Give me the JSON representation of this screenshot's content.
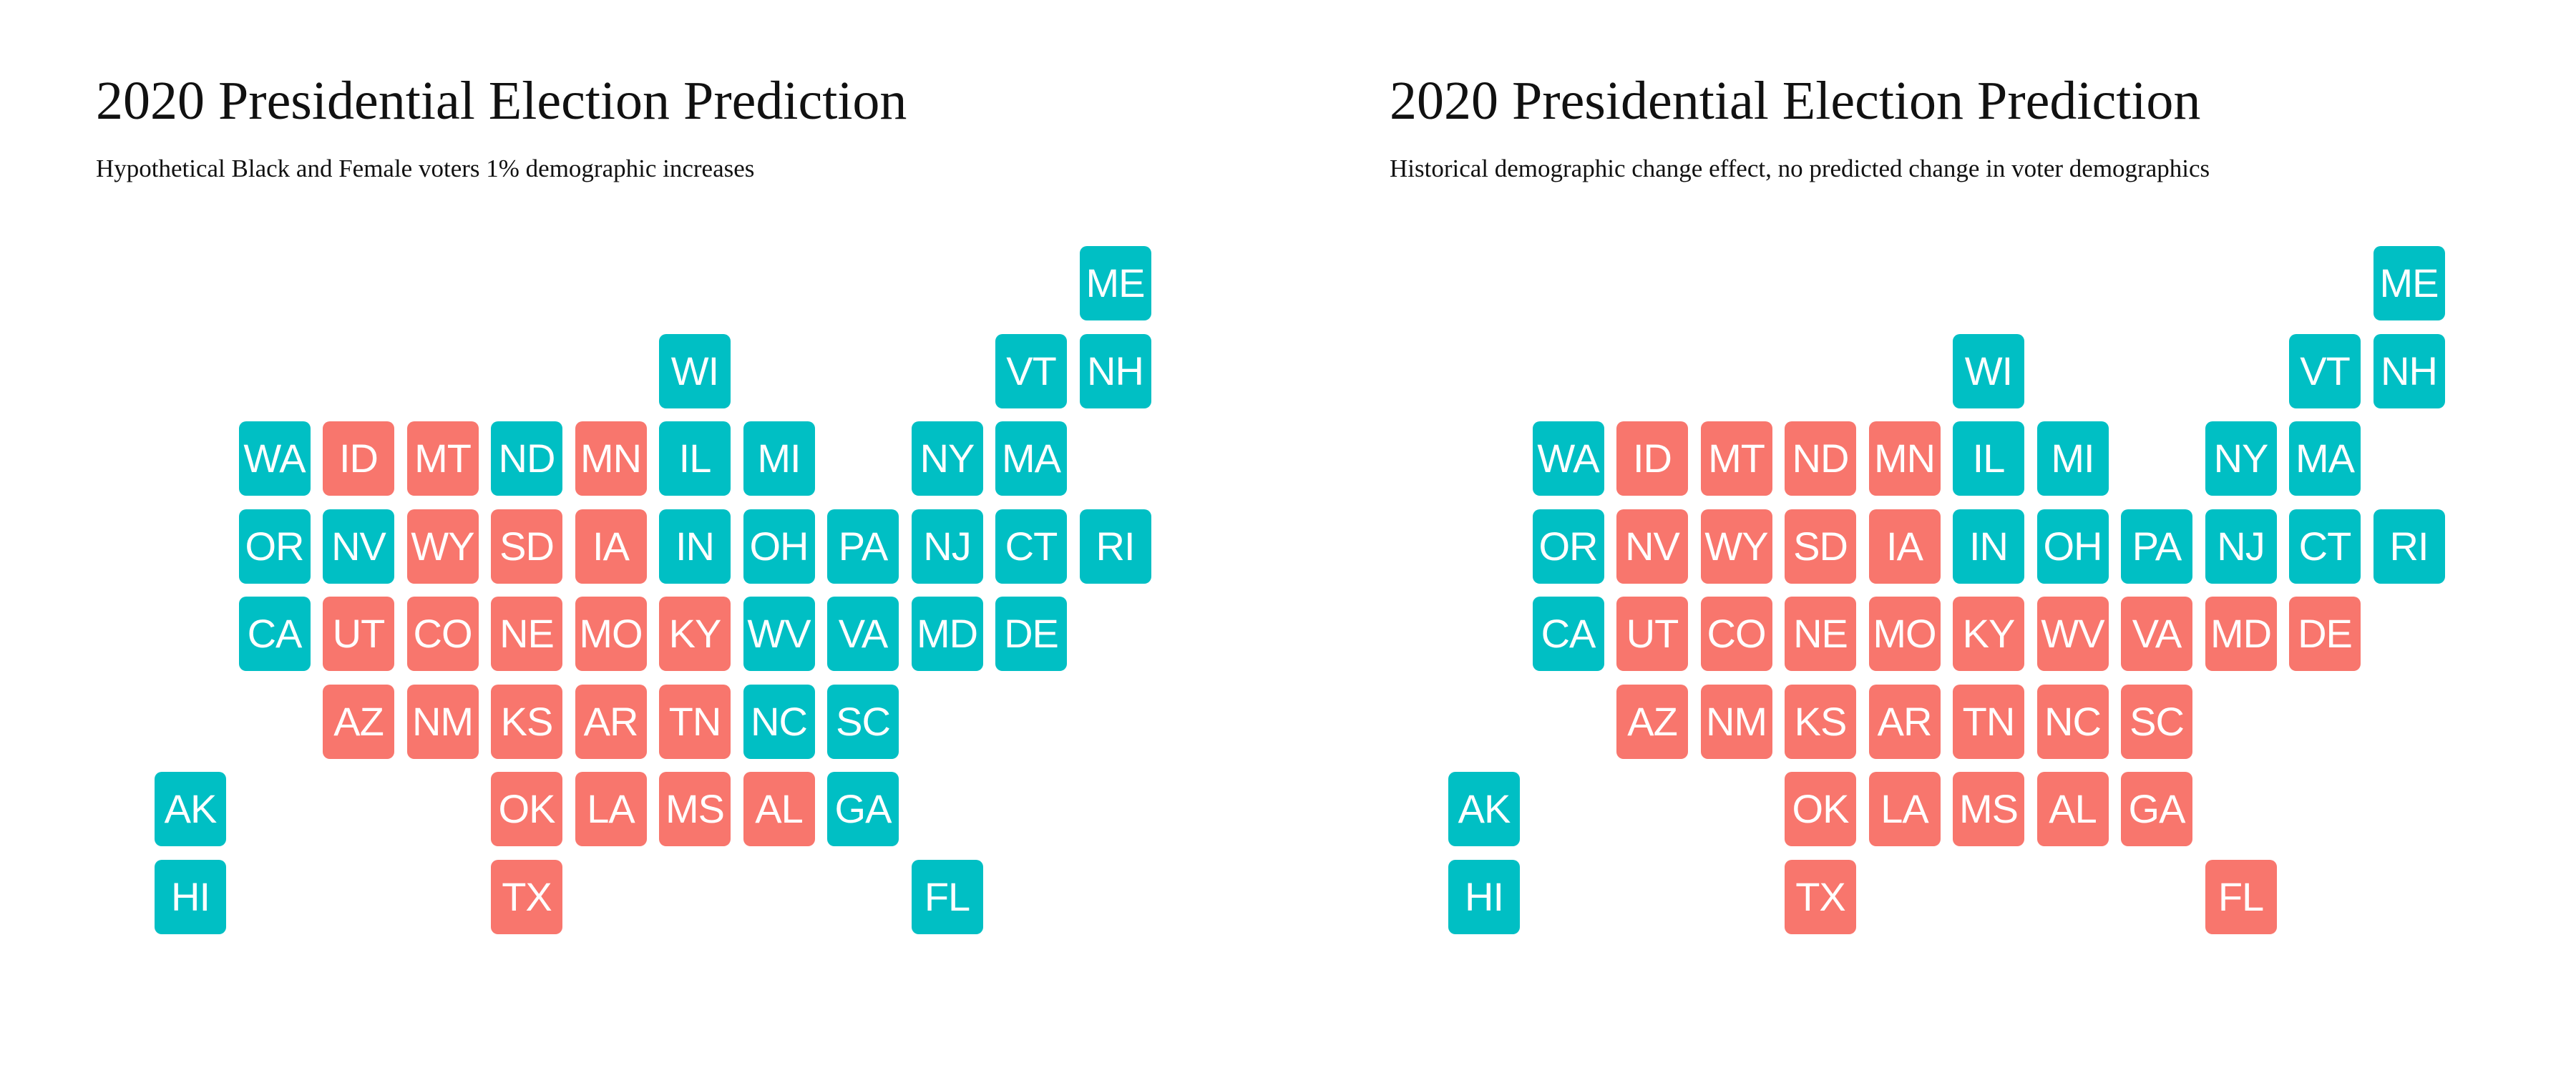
{
  "colors": {
    "dem": "#00BFC4",
    "rep": "#F8766D",
    "tile_text": "#FFFFFF",
    "background": "#FFFFFF"
  },
  "panels": [
    {
      "title": "2020 Presidential Election Prediction",
      "subtitle": "Hypothetical Black and Female voters 1% demographic increases",
      "states": [
        {
          "abbr": "ME",
          "col": 11,
          "row": 0,
          "party": "dem"
        },
        {
          "abbr": "WI",
          "col": 6,
          "row": 1,
          "party": "dem"
        },
        {
          "abbr": "VT",
          "col": 10,
          "row": 1,
          "party": "dem"
        },
        {
          "abbr": "NH",
          "col": 11,
          "row": 1,
          "party": "dem"
        },
        {
          "abbr": "WA",
          "col": 1,
          "row": 2,
          "party": "dem"
        },
        {
          "abbr": "ID",
          "col": 2,
          "row": 2,
          "party": "rep"
        },
        {
          "abbr": "MT",
          "col": 3,
          "row": 2,
          "party": "rep"
        },
        {
          "abbr": "ND",
          "col": 4,
          "row": 2,
          "party": "dem"
        },
        {
          "abbr": "MN",
          "col": 5,
          "row": 2,
          "party": "rep"
        },
        {
          "abbr": "IL",
          "col": 6,
          "row": 2,
          "party": "dem"
        },
        {
          "abbr": "MI",
          "col": 7,
          "row": 2,
          "party": "dem"
        },
        {
          "abbr": "NY",
          "col": 9,
          "row": 2,
          "party": "dem"
        },
        {
          "abbr": "MA",
          "col": 10,
          "row": 2,
          "party": "dem"
        },
        {
          "abbr": "OR",
          "col": 1,
          "row": 3,
          "party": "dem"
        },
        {
          "abbr": "NV",
          "col": 2,
          "row": 3,
          "party": "dem"
        },
        {
          "abbr": "WY",
          "col": 3,
          "row": 3,
          "party": "rep"
        },
        {
          "abbr": "SD",
          "col": 4,
          "row": 3,
          "party": "rep"
        },
        {
          "abbr": "IA",
          "col": 5,
          "row": 3,
          "party": "rep"
        },
        {
          "abbr": "IN",
          "col": 6,
          "row": 3,
          "party": "dem"
        },
        {
          "abbr": "OH",
          "col": 7,
          "row": 3,
          "party": "dem"
        },
        {
          "abbr": "PA",
          "col": 8,
          "row": 3,
          "party": "dem"
        },
        {
          "abbr": "NJ",
          "col": 9,
          "row": 3,
          "party": "dem"
        },
        {
          "abbr": "CT",
          "col": 10,
          "row": 3,
          "party": "dem"
        },
        {
          "abbr": "RI",
          "col": 11,
          "row": 3,
          "party": "dem"
        },
        {
          "abbr": "CA",
          "col": 1,
          "row": 4,
          "party": "dem"
        },
        {
          "abbr": "UT",
          "col": 2,
          "row": 4,
          "party": "rep"
        },
        {
          "abbr": "CO",
          "col": 3,
          "row": 4,
          "party": "rep"
        },
        {
          "abbr": "NE",
          "col": 4,
          "row": 4,
          "party": "rep"
        },
        {
          "abbr": "MO",
          "col": 5,
          "row": 4,
          "party": "rep"
        },
        {
          "abbr": "KY",
          "col": 6,
          "row": 4,
          "party": "rep"
        },
        {
          "abbr": "WV",
          "col": 7,
          "row": 4,
          "party": "dem"
        },
        {
          "abbr": "VA",
          "col": 8,
          "row": 4,
          "party": "dem"
        },
        {
          "abbr": "MD",
          "col": 9,
          "row": 4,
          "party": "dem"
        },
        {
          "abbr": "DE",
          "col": 10,
          "row": 4,
          "party": "dem"
        },
        {
          "abbr": "AZ",
          "col": 2,
          "row": 5,
          "party": "rep"
        },
        {
          "abbr": "NM",
          "col": 3,
          "row": 5,
          "party": "rep"
        },
        {
          "abbr": "KS",
          "col": 4,
          "row": 5,
          "party": "rep"
        },
        {
          "abbr": "AR",
          "col": 5,
          "row": 5,
          "party": "rep"
        },
        {
          "abbr": "TN",
          "col": 6,
          "row": 5,
          "party": "rep"
        },
        {
          "abbr": "NC",
          "col": 7,
          "row": 5,
          "party": "dem"
        },
        {
          "abbr": "SC",
          "col": 8,
          "row": 5,
          "party": "dem"
        },
        {
          "abbr": "AK",
          "col": 0,
          "row": 6,
          "party": "dem"
        },
        {
          "abbr": "OK",
          "col": 4,
          "row": 6,
          "party": "rep"
        },
        {
          "abbr": "LA",
          "col": 5,
          "row": 6,
          "party": "rep"
        },
        {
          "abbr": "MS",
          "col": 6,
          "row": 6,
          "party": "rep"
        },
        {
          "abbr": "AL",
          "col": 7,
          "row": 6,
          "party": "rep"
        },
        {
          "abbr": "GA",
          "col": 8,
          "row": 6,
          "party": "dem"
        },
        {
          "abbr": "HI",
          "col": 0,
          "row": 7,
          "party": "dem"
        },
        {
          "abbr": "TX",
          "col": 4,
          "row": 7,
          "party": "rep"
        },
        {
          "abbr": "FL",
          "col": 9,
          "row": 7,
          "party": "dem"
        }
      ]
    },
    {
      "title": "2020 Presidential Election Prediction",
      "subtitle": "Historical demographic change effect, no predicted change in voter demographics",
      "states": [
        {
          "abbr": "ME",
          "col": 11,
          "row": 0,
          "party": "dem"
        },
        {
          "abbr": "WI",
          "col": 6,
          "row": 1,
          "party": "dem"
        },
        {
          "abbr": "VT",
          "col": 10,
          "row": 1,
          "party": "dem"
        },
        {
          "abbr": "NH",
          "col": 11,
          "row": 1,
          "party": "dem"
        },
        {
          "abbr": "WA",
          "col": 1,
          "row": 2,
          "party": "dem"
        },
        {
          "abbr": "ID",
          "col": 2,
          "row": 2,
          "party": "rep"
        },
        {
          "abbr": "MT",
          "col": 3,
          "row": 2,
          "party": "rep"
        },
        {
          "abbr": "ND",
          "col": 4,
          "row": 2,
          "party": "rep"
        },
        {
          "abbr": "MN",
          "col": 5,
          "row": 2,
          "party": "rep"
        },
        {
          "abbr": "IL",
          "col": 6,
          "row": 2,
          "party": "dem"
        },
        {
          "abbr": "MI",
          "col": 7,
          "row": 2,
          "party": "dem"
        },
        {
          "abbr": "NY",
          "col": 9,
          "row": 2,
          "party": "dem"
        },
        {
          "abbr": "MA",
          "col": 10,
          "row": 2,
          "party": "dem"
        },
        {
          "abbr": "OR",
          "col": 1,
          "row": 3,
          "party": "dem"
        },
        {
          "abbr": "NV",
          "col": 2,
          "row": 3,
          "party": "rep"
        },
        {
          "abbr": "WY",
          "col": 3,
          "row": 3,
          "party": "rep"
        },
        {
          "abbr": "SD",
          "col": 4,
          "row": 3,
          "party": "rep"
        },
        {
          "abbr": "IA",
          "col": 5,
          "row": 3,
          "party": "rep"
        },
        {
          "abbr": "IN",
          "col": 6,
          "row": 3,
          "party": "dem"
        },
        {
          "abbr": "OH",
          "col": 7,
          "row": 3,
          "party": "dem"
        },
        {
          "abbr": "PA",
          "col": 8,
          "row": 3,
          "party": "dem"
        },
        {
          "abbr": "NJ",
          "col": 9,
          "row": 3,
          "party": "dem"
        },
        {
          "abbr": "CT",
          "col": 10,
          "row": 3,
          "party": "dem"
        },
        {
          "abbr": "RI",
          "col": 11,
          "row": 3,
          "party": "dem"
        },
        {
          "abbr": "CA",
          "col": 1,
          "row": 4,
          "party": "dem"
        },
        {
          "abbr": "UT",
          "col": 2,
          "row": 4,
          "party": "rep"
        },
        {
          "abbr": "CO",
          "col": 3,
          "row": 4,
          "party": "rep"
        },
        {
          "abbr": "NE",
          "col": 4,
          "row": 4,
          "party": "rep"
        },
        {
          "abbr": "MO",
          "col": 5,
          "row": 4,
          "party": "rep"
        },
        {
          "abbr": "KY",
          "col": 6,
          "row": 4,
          "party": "rep"
        },
        {
          "abbr": "WV",
          "col": 7,
          "row": 4,
          "party": "rep"
        },
        {
          "abbr": "VA",
          "col": 8,
          "row": 4,
          "party": "rep"
        },
        {
          "abbr": "MD",
          "col": 9,
          "row": 4,
          "party": "rep"
        },
        {
          "abbr": "DE",
          "col": 10,
          "row": 4,
          "party": "rep"
        },
        {
          "abbr": "AZ",
          "col": 2,
          "row": 5,
          "party": "rep"
        },
        {
          "abbr": "NM",
          "col": 3,
          "row": 5,
          "party": "rep"
        },
        {
          "abbr": "KS",
          "col": 4,
          "row": 5,
          "party": "rep"
        },
        {
          "abbr": "AR",
          "col": 5,
          "row": 5,
          "party": "rep"
        },
        {
          "abbr": "TN",
          "col": 6,
          "row": 5,
          "party": "rep"
        },
        {
          "abbr": "NC",
          "col": 7,
          "row": 5,
          "party": "rep"
        },
        {
          "abbr": "SC",
          "col": 8,
          "row": 5,
          "party": "rep"
        },
        {
          "abbr": "AK",
          "col": 0,
          "row": 6,
          "party": "dem"
        },
        {
          "abbr": "OK",
          "col": 4,
          "row": 6,
          "party": "rep"
        },
        {
          "abbr": "LA",
          "col": 5,
          "row": 6,
          "party": "rep"
        },
        {
          "abbr": "MS",
          "col": 6,
          "row": 6,
          "party": "rep"
        },
        {
          "abbr": "AL",
          "col": 7,
          "row": 6,
          "party": "rep"
        },
        {
          "abbr": "GA",
          "col": 8,
          "row": 6,
          "party": "rep"
        },
        {
          "abbr": "HI",
          "col": 0,
          "row": 7,
          "party": "dem"
        },
        {
          "abbr": "TX",
          "col": 4,
          "row": 7,
          "party": "rep"
        },
        {
          "abbr": "FL",
          "col": 9,
          "row": 7,
          "party": "rep"
        }
      ]
    }
  ]
}
